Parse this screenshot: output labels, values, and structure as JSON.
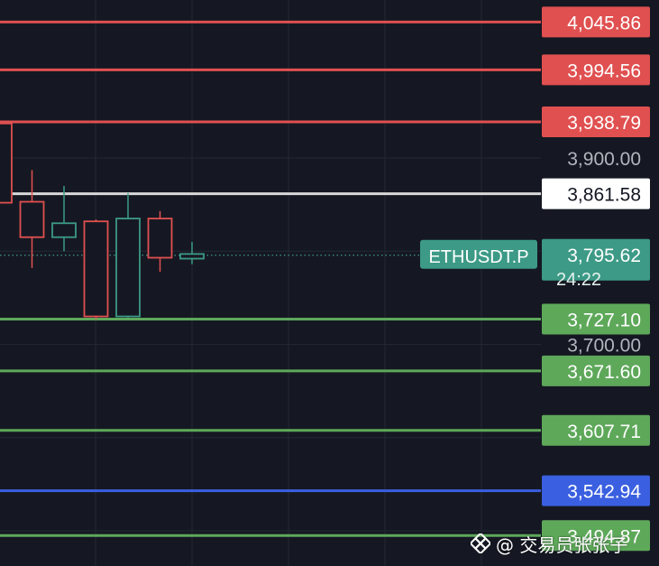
{
  "chart_data": {
    "type": "candlestick",
    "symbol": "ETHUSDT.P",
    "countdown": "24:22",
    "axis": {
      "tick_labels": [
        {
          "price": 3900.0,
          "label": "3,900.00"
        },
        {
          "price": 3700.0,
          "label": "3,700.00"
        }
      ],
      "scale": "linear",
      "grid": true
    },
    "levels": [
      {
        "price": 4045.86,
        "label": "4,045.86",
        "kind": "resistance",
        "color": "#e05050"
      },
      {
        "price": 3994.56,
        "label": "3,994.56",
        "kind": "resistance",
        "color": "#e05050"
      },
      {
        "price": 3938.79,
        "label": "3,938.79",
        "kind": "resistance",
        "color": "#e05050"
      },
      {
        "price": 3861.58,
        "label": "3,861.58",
        "kind": "pivot",
        "color": "#d8d8d8"
      },
      {
        "price": 3727.1,
        "label": "3,727.10",
        "kind": "support",
        "color": "#5ea85a"
      },
      {
        "price": 3671.6,
        "label": "3,671.60",
        "kind": "support",
        "color": "#5ea85a"
      },
      {
        "price": 3607.71,
        "label": "3,607.71",
        "kind": "support",
        "color": "#5ea85a"
      },
      {
        "price": 3542.94,
        "label": "3,542.94",
        "kind": "key",
        "color": "#3a5fe0"
      },
      {
        "price": 3494.87,
        "label": "3,494.87",
        "kind": "support",
        "color": "#5ea85a"
      }
    ],
    "current_price": {
      "price": 3795.62,
      "label": "3,795.62",
      "color": "#3c9a86"
    },
    "candles": [
      {
        "open": 3937,
        "high": 3940,
        "low": 3852,
        "close": 3852
      },
      {
        "open": 3853,
        "high": 3887,
        "low": 3782,
        "close": 3815
      },
      {
        "open": 3815,
        "high": 3870,
        "low": 3800,
        "close": 3830
      },
      {
        "open": 3832,
        "high": 3834,
        "low": 3727,
        "close": 3730
      },
      {
        "open": 3730,
        "high": 3862,
        "low": 3728,
        "close": 3835
      },
      {
        "open": 3835,
        "high": 3843,
        "low": 3778,
        "close": 3793
      },
      {
        "open": 3792,
        "high": 3810,
        "low": 3786,
        "close": 3797
      }
    ],
    "colors": {
      "background": "#151822",
      "grid": "#232734",
      "up": "#3c9a86",
      "down": "#e05050",
      "axis_text": "#b2b5be"
    }
  },
  "watermark": {
    "text": "@ 交易员张张子",
    "icon": "binance-diamond-icon"
  }
}
